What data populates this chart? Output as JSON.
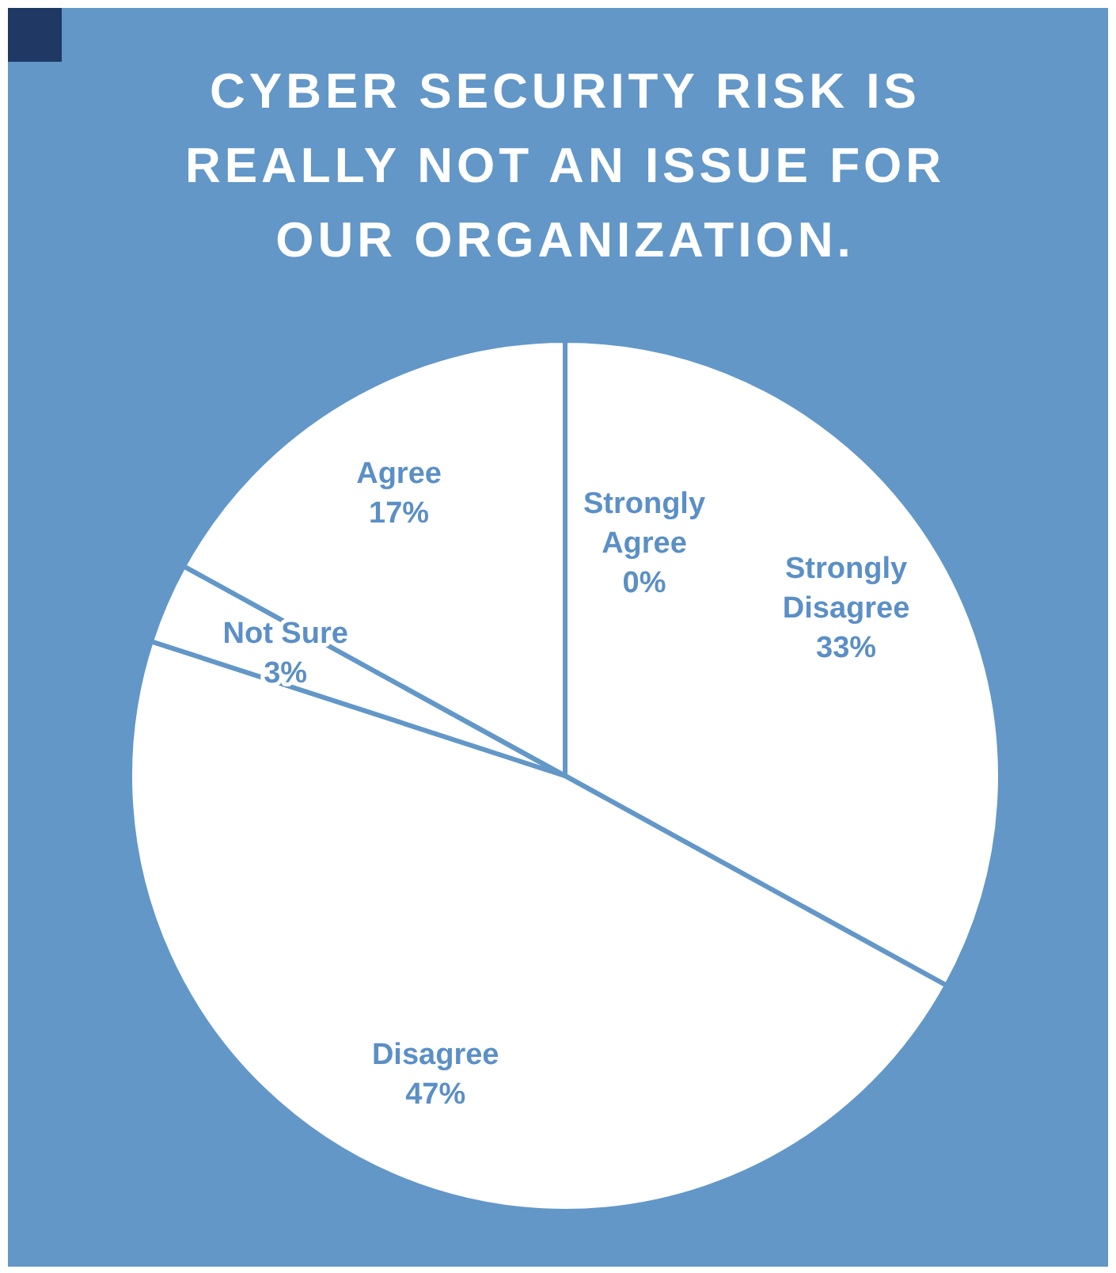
{
  "chart_data": {
    "type": "pie",
    "title": "CYBER SECURITY RISK IS REALLY NOT AN ISSUE FOR OUR ORGANIZATION.",
    "categories": [
      "Strongly Agree",
      "Strongly Disagree",
      "Disagree",
      "Not Sure",
      "Agree"
    ],
    "values": [
      0,
      33,
      47,
      3,
      17
    ],
    "value_labels": [
      "0%",
      "33%",
      "47%",
      "3%",
      "17%"
    ],
    "colors": [
      "#ffffff",
      "#ffffff",
      "#ffffff",
      "#ffffff",
      "#ffffff"
    ]
  }
}
